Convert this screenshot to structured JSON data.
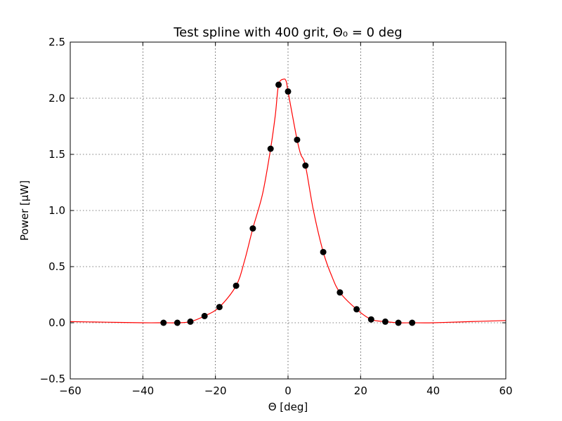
{
  "chart_data": {
    "type": "scatter",
    "title": "Test spline with 400 grit, Θ₀ = 0 deg",
    "xlabel": "Θ [deg]",
    "ylabel": "Power [μW]",
    "xlim": [
      -60,
      60
    ],
    "ylim": [
      -0.5,
      2.5
    ],
    "xticks": [
      -60,
      -40,
      -20,
      0,
      20,
      40,
      60
    ],
    "yticks": [
      -0.5,
      0.0,
      0.5,
      1.0,
      1.5,
      2.0,
      2.5
    ],
    "xtick_labels": [
      "−60",
      "−40",
      "−20",
      "0",
      "20",
      "40",
      "60"
    ],
    "ytick_labels": [
      "−0.5",
      "0.0",
      "0.5",
      "1.0",
      "1.5",
      "2.0",
      "2.5"
    ],
    "grid": true,
    "series": [
      {
        "kind": "points",
        "color": "#000000",
        "x": [
          -34.3,
          -30.5,
          -26.9,
          -23.0,
          -18.9,
          -14.3,
          -9.7,
          -4.8,
          -2.6,
          0.0,
          2.5,
          4.8,
          9.7,
          14.3,
          18.9,
          22.9,
          26.8,
          30.4,
          34.2
        ],
        "y": [
          0.0,
          0.0,
          0.01,
          0.06,
          0.14,
          0.33,
          0.84,
          1.55,
          2.12,
          2.06,
          1.63,
          1.4,
          0.63,
          0.27,
          0.12,
          0.03,
          0.01,
          0.0,
          0.0
        ]
      },
      {
        "kind": "line",
        "color": "#ff0000",
        "x": [
          -60,
          -50,
          -40,
          -34.3,
          -30.5,
          -26.9,
          -23.0,
          -18.9,
          -14.3,
          -12,
          -9.7,
          -7,
          -4.8,
          -3.5,
          -2.6,
          -1.2,
          -0.5,
          0.0,
          1.2,
          2.5,
          3.5,
          4.8,
          7,
          9.7,
          12,
          14.3,
          18.9,
          22.9,
          26.8,
          30.4,
          34.2,
          40,
          50,
          60
        ],
        "y": [
          0.01,
          0.005,
          0.0,
          0.0,
          0.0,
          0.01,
          0.06,
          0.14,
          0.33,
          0.55,
          0.84,
          1.15,
          1.55,
          1.85,
          2.12,
          2.17,
          2.15,
          2.06,
          1.85,
          1.63,
          1.5,
          1.4,
          1.0,
          0.63,
          0.42,
          0.27,
          0.12,
          0.03,
          0.01,
          0.0,
          0.0,
          0.0,
          0.01,
          0.02
        ]
      }
    ]
  }
}
